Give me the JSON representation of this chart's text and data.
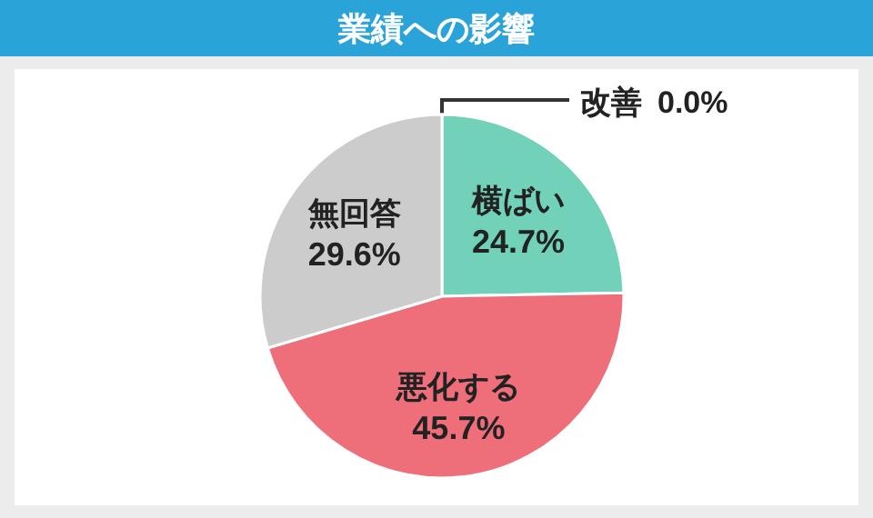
{
  "chart_data": {
    "type": "pie",
    "title": "業績への影響",
    "categories": [
      "改善",
      "横ばい",
      "悪化する",
      "無回答"
    ],
    "values": [
      0.0,
      24.7,
      45.7,
      29.6
    ],
    "colors": [
      "#2aa3d8",
      "#72d1b9",
      "#ee6f7a",
      "#cccccc"
    ],
    "value_labels": [
      "0.0%",
      "24.7%",
      "45.7%",
      "29.6%"
    ]
  }
}
